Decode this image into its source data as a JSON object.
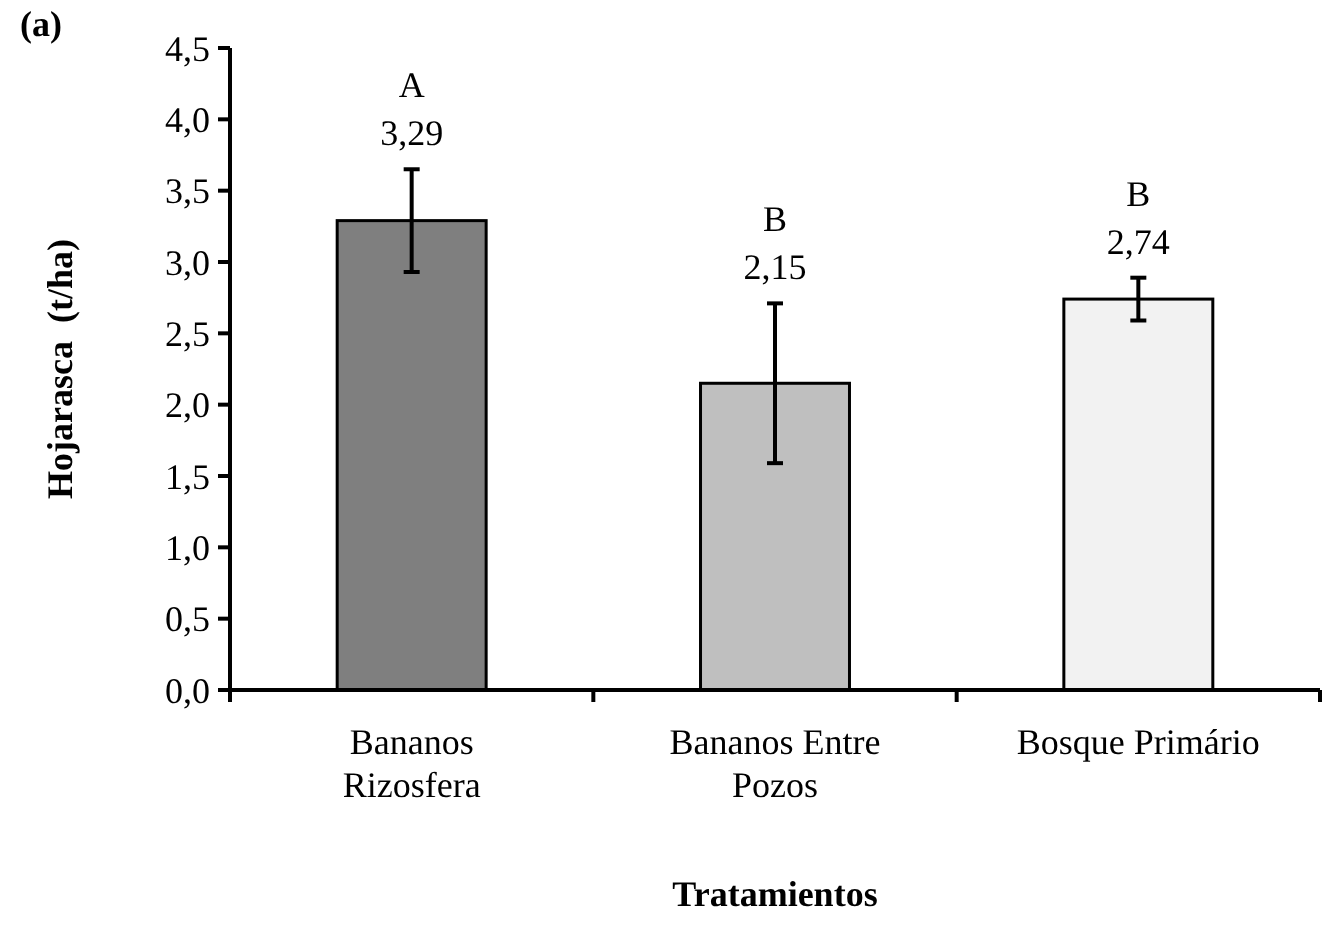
{
  "chart_data": {
    "type": "bar",
    "title": "(a)",
    "categories": [
      "Bananos Rizosfera",
      "Bananos Entre Pozos",
      "Bosque Primário"
    ],
    "values": [
      3.29,
      2.15,
      2.74
    ],
    "colors": [
      "#7f7f7f",
      "#bfbfbf",
      "#f2f2f2"
    ],
    "errors": [
      0.36,
      0.56,
      0.15
    ],
    "value_labels": [
      "3,29",
      "2,15",
      "2,74"
    ],
    "annotations": [
      "A",
      "B",
      "B"
    ],
    "ylabel": "Hojarasca  (t/ha)",
    "xlabel": "Tratamientos",
    "ylim": [
      0,
      4.5
    ],
    "yticks": [
      {
        "value": 0,
        "label": "0,0"
      },
      {
        "value": 0.5,
        "label": "0,5"
      },
      {
        "value": 1,
        "label": "1,0"
      },
      {
        "value": 1.5,
        "label": "1,5"
      },
      {
        "value": 2,
        "label": "2,0"
      },
      {
        "value": 2.5,
        "label": "2,5"
      },
      {
        "value": 3,
        "label": "3,0"
      },
      {
        "value": 3.5,
        "label": "3,5"
      },
      {
        "value": 4,
        "label": "4,0"
      },
      {
        "value": 4.5,
        "label": "4,5"
      }
    ],
    "grid": false
  }
}
